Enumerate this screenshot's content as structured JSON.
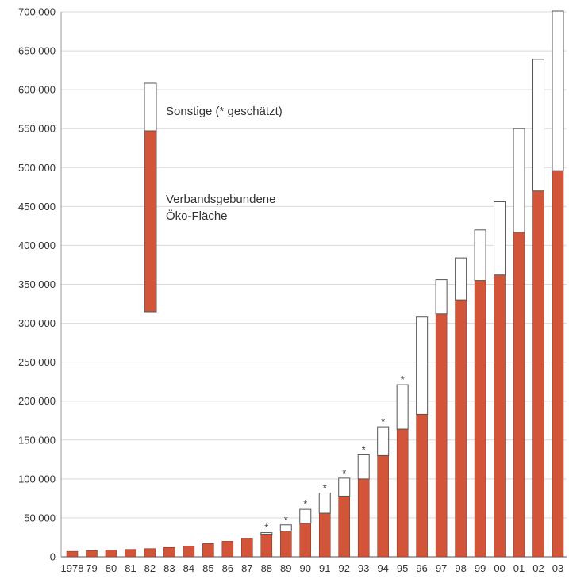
{
  "chart_data": {
    "type": "bar",
    "stacked": true,
    "categories": [
      "1978",
      "79",
      "80",
      "81",
      "82",
      "83",
      "84",
      "85",
      "86",
      "87",
      "88",
      "89",
      "90",
      "91",
      "92",
      "93",
      "94",
      "95",
      "96",
      "97",
      "98",
      "99",
      "00",
      "01",
      "02",
      "03"
    ],
    "series": [
      {
        "name": "Verbandsgebundene Öko-Fläche",
        "color": "#d2553a",
        "values": [
          7000,
          8000,
          8500,
          9500,
          10500,
          12000,
          14000,
          17000,
          20000,
          24000,
          29000,
          33000,
          43000,
          56000,
          78000,
          100000,
          130000,
          164000,
          183000,
          312000,
          330000,
          355000,
          362000,
          417000,
          470000,
          496000
        ]
      },
      {
        "name": "Sonstige (* geschätzt)",
        "color": "#ffffff",
        "values": [
          0,
          0,
          0,
          0,
          0,
          0,
          0,
          0,
          0,
          0,
          2000,
          8000,
          18000,
          26000,
          23000,
          31000,
          37000,
          57000,
          125000,
          44000,
          54000,
          65000,
          94000,
          133000,
          169000,
          205000
        ]
      }
    ],
    "estimated_categories": [
      "88",
      "89",
      "90",
      "91",
      "92",
      "93",
      "94",
      "95"
    ],
    "estimate_marker": "*",
    "ylim": [
      0,
      700000
    ],
    "yticks": [
      0,
      50000,
      100000,
      150000,
      200000,
      250000,
      300000,
      350000,
      400000,
      450000,
      500000,
      550000,
      600000,
      650000,
      700000
    ],
    "ytick_labels": [
      "0",
      "50 000",
      "100 000",
      "150 000",
      "200 000",
      "250 000",
      "300 000",
      "350 000",
      "400 000",
      "450 000",
      "500 000",
      "550 000",
      "600 000",
      "650 000",
      "700 000"
    ],
    "grid": true,
    "legend": {
      "placement": "top-left",
      "sonstige_label": "Sonstige (* geschätzt)",
      "verband_label_line1": "Verbandsgebundene",
      "verband_label_line2": "Öko-Fläche"
    }
  }
}
